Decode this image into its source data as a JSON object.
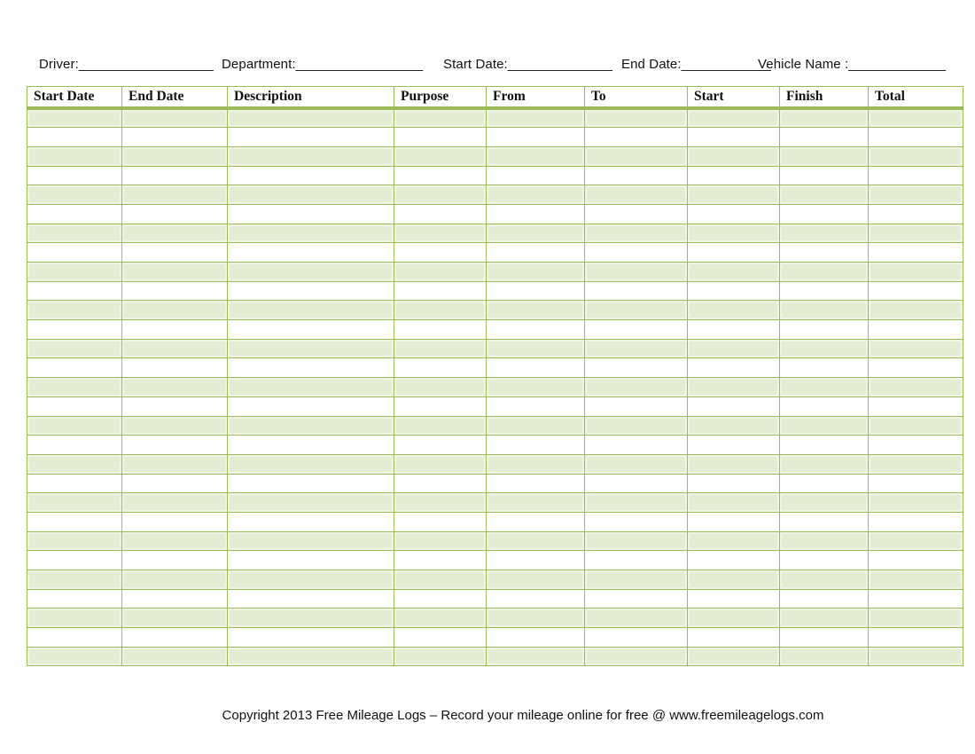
{
  "form": {
    "driver": "Driver:__________________",
    "department": "Department:_________________",
    "start_date": "Start Date:______________",
    "end_date": "End Date:____________",
    "vehicle_name": "Vehicle Name :_____________"
  },
  "table": {
    "columns": [
      "Start Date",
      "End Date",
      "Description",
      "Purpose",
      "From",
      "To",
      "Start",
      "Finish",
      "Total"
    ],
    "row_count": 29,
    "rows_are_empty": true,
    "first_row_shaded": true
  },
  "footer": {
    "copyright": "Copyright 2013 Free Mileage Logs – Record your mileage online for free @ www.freemileagelogs.com"
  },
  "colors": {
    "border_green": "#9bbb59",
    "shaded_row_fill": "#e4edd4",
    "shaded_row_inner_highlight": "#eff4e4",
    "background": "#ffffff",
    "text": "#111111"
  }
}
